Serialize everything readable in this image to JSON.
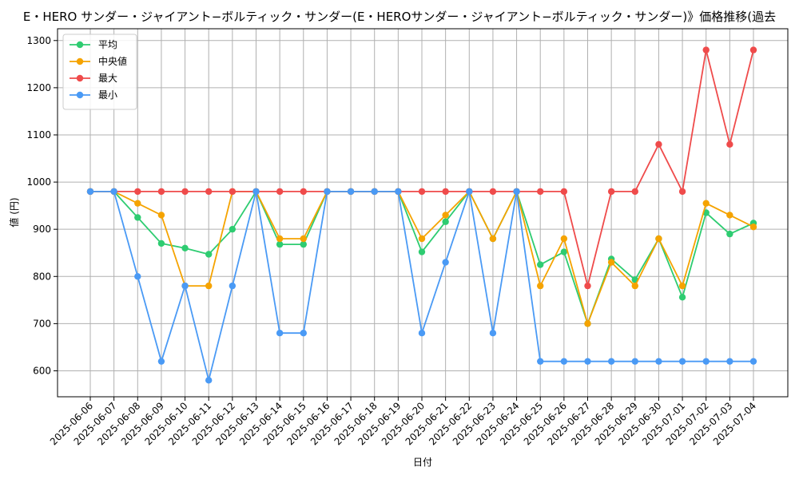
{
  "chart_data": {
    "type": "line",
    "title": "E・HERO サンダー・ジャイアント−ボルティック・サンダー(E・HEROサンダー・ジャイアント−ボルティック・サンダー)》価格推移(過去",
    "xlabel": "日付",
    "ylabel": "値 (円)",
    "ylim": [
      545,
      1325
    ],
    "yticks": [
      600,
      700,
      800,
      900,
      1000,
      1100,
      1200,
      1300
    ],
    "grid": true,
    "legend_position": "top-left",
    "categories": [
      "2025-06-06",
      "2025-06-07",
      "2025-06-08",
      "2025-06-09",
      "2025-06-10",
      "2025-06-11",
      "2025-06-12",
      "2025-06-13",
      "2025-06-14",
      "2025-06-15",
      "2025-06-16",
      "2025-06-17",
      "2025-06-18",
      "2025-06-19",
      "2025-06-20",
      "2025-06-21",
      "2025-06-22",
      "2025-06-23",
      "2025-06-24",
      "2025-06-25",
      "2025-06-26",
      "2025-06-27",
      "2025-06-28",
      "2025-06-29",
      "2025-06-30",
      "2025-07-01",
      "2025-07-02",
      "2025-07-03",
      "2025-07-04"
    ],
    "series": [
      {
        "name": "平均",
        "color": "#2ecc71",
        "values": [
          980,
          980,
          925,
          870,
          860,
          847,
          900,
          980,
          868,
          868,
          980,
          980,
          980,
          980,
          852,
          916,
          980,
          880,
          980,
          825,
          852,
          700,
          837,
          793,
          880,
          756,
          935,
          890,
          913
        ]
      },
      {
        "name": "中央値",
        "color": "#f5a300",
        "values": [
          980,
          980,
          955,
          930,
          780,
          780,
          980,
          980,
          880,
          880,
          980,
          980,
          980,
          980,
          880,
          930,
          980,
          880,
          980,
          780,
          880,
          700,
          830,
          780,
          880,
          780,
          955,
          930,
          905
        ]
      },
      {
        "name": "最大",
        "color": "#ef4b4b",
        "values": [
          980,
          980,
          980,
          980,
          980,
          980,
          980,
          980,
          980,
          980,
          980,
          980,
          980,
          980,
          980,
          980,
          980,
          980,
          980,
          980,
          980,
          780,
          980,
          980,
          1080,
          980,
          1280,
          1080,
          1280
        ]
      },
      {
        "name": "最小",
        "color": "#4a9af5",
        "values": [
          980,
          980,
          800,
          620,
          780,
          580,
          780,
          980,
          680,
          680,
          980,
          980,
          980,
          980,
          680,
          830,
          980,
          680,
          980,
          620,
          620,
          620,
          620,
          620,
          620,
          620,
          620,
          620,
          620
        ]
      }
    ]
  }
}
